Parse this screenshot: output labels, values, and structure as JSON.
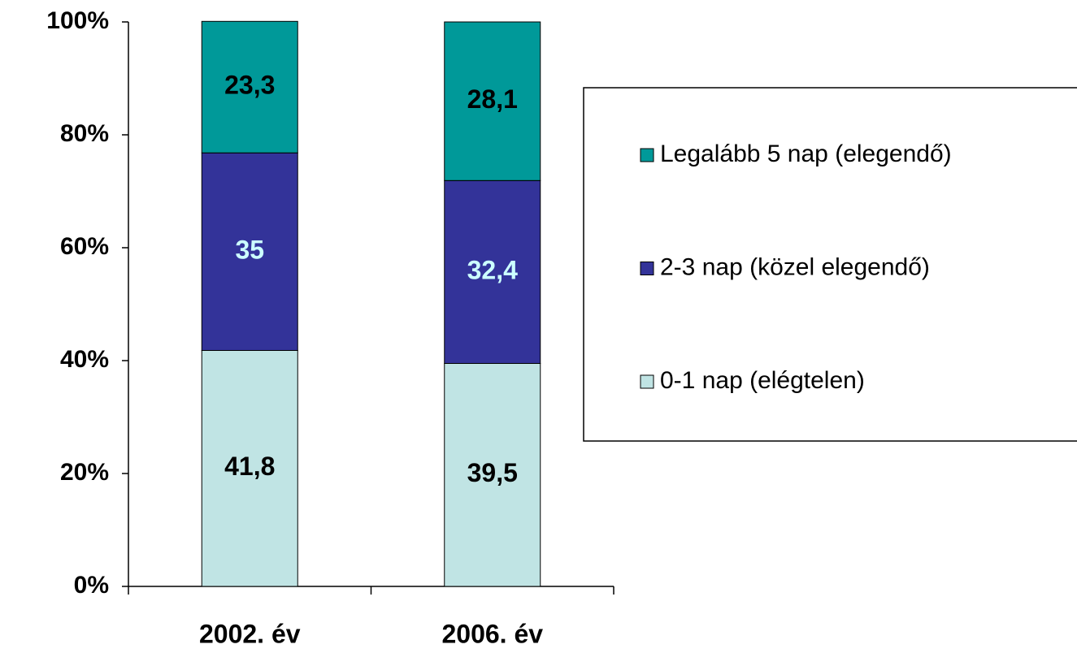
{
  "chart_data": {
    "type": "stacked_bar",
    "categories": [
      "2002. év",
      "2006. év"
    ],
    "series": [
      {
        "name": "0-1 nap (elégtelen)",
        "color": "#c0e4e4",
        "label_color": "#000000",
        "values": [
          41.8,
          39.5
        ],
        "value_labels": [
          "41,8",
          "39,5"
        ]
      },
      {
        "name": "2-3 nap (közel elegendő)",
        "color": "#333399",
        "label_color": "#ccffff",
        "values": [
          35,
          32.4
        ],
        "value_labels": [
          "35",
          "32,4"
        ]
      },
      {
        "name": "Legalább 5 nap (elegendő)",
        "color": "#009999",
        "label_color": "#000000",
        "values": [
          23.3,
          28.1
        ],
        "value_labels": [
          "23,3",
          "28,1"
        ]
      }
    ],
    "ylim": [
      0,
      100
    ],
    "yticks": [
      {
        "value": 0,
        "label": "0%"
      },
      {
        "value": 20,
        "label": "20%"
      },
      {
        "value": 40,
        "label": "40%"
      },
      {
        "value": 60,
        "label": "60%"
      },
      {
        "value": 80,
        "label": "80%"
      },
      {
        "value": 100,
        "label": "100%"
      }
    ],
    "legend": "right"
  }
}
